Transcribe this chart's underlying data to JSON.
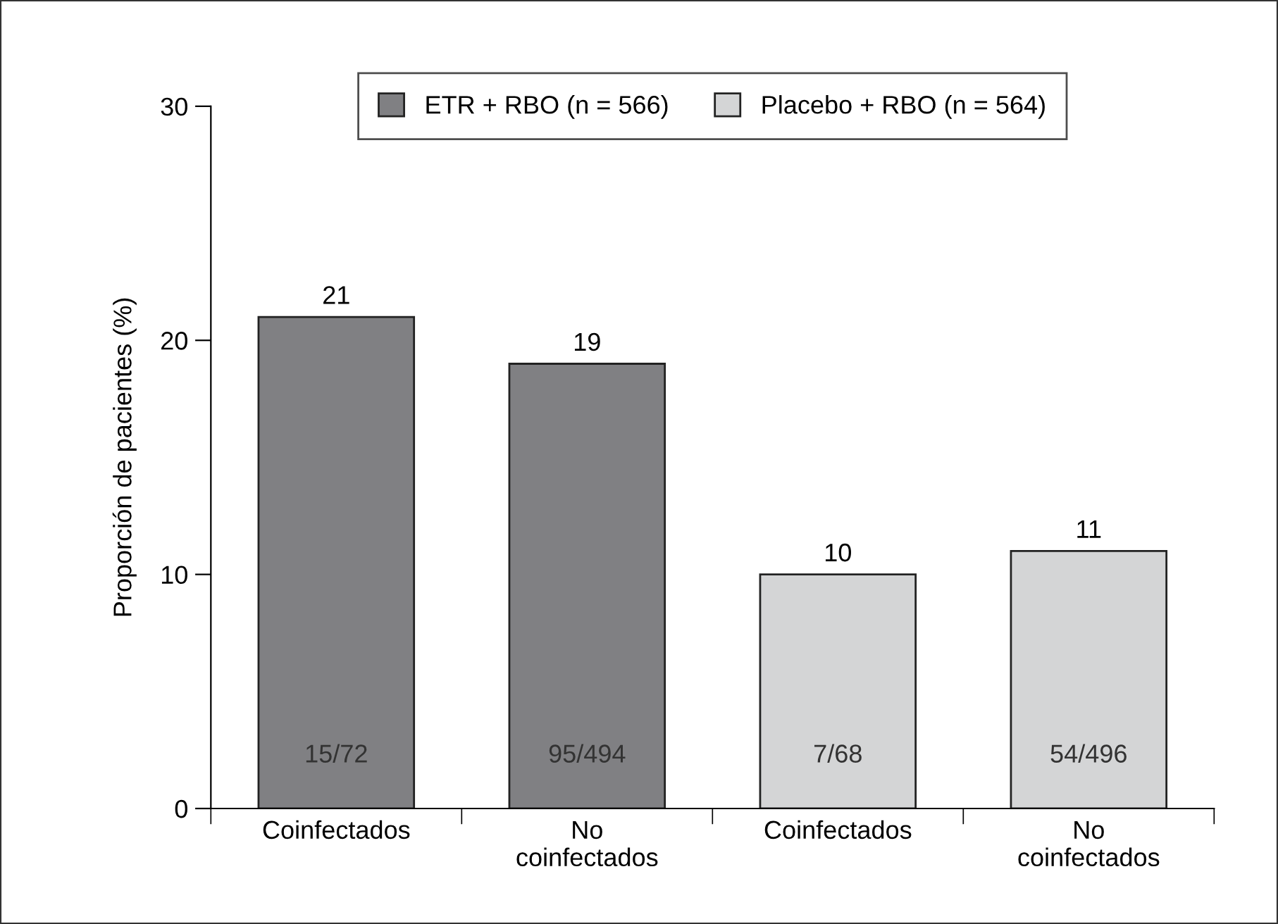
{
  "chart_data": {
    "type": "bar",
    "ylabel": "Proporción de pacientes (%)",
    "categories": [
      "Coinfectados",
      "No\ncoinfectados",
      "Coinfectados",
      "No\ncoinfectados"
    ],
    "series": [
      {
        "name": "ETR + RBO (n = 566)",
        "color": "#808083",
        "values": [
          21,
          19,
          null,
          null
        ]
      },
      {
        "name": "Placebo + RBO (n = 564)",
        "color": "#d4d5d6",
        "values": [
          null,
          null,
          10,
          11
        ]
      }
    ],
    "ylim": [
      0,
      30
    ],
    "yticks": [
      0,
      10,
      20,
      30
    ],
    "data_labels": true,
    "legend": "top",
    "grid": false,
    "annotations": [
      "15/72",
      "95/494",
      "7/68",
      "54/496"
    ]
  }
}
